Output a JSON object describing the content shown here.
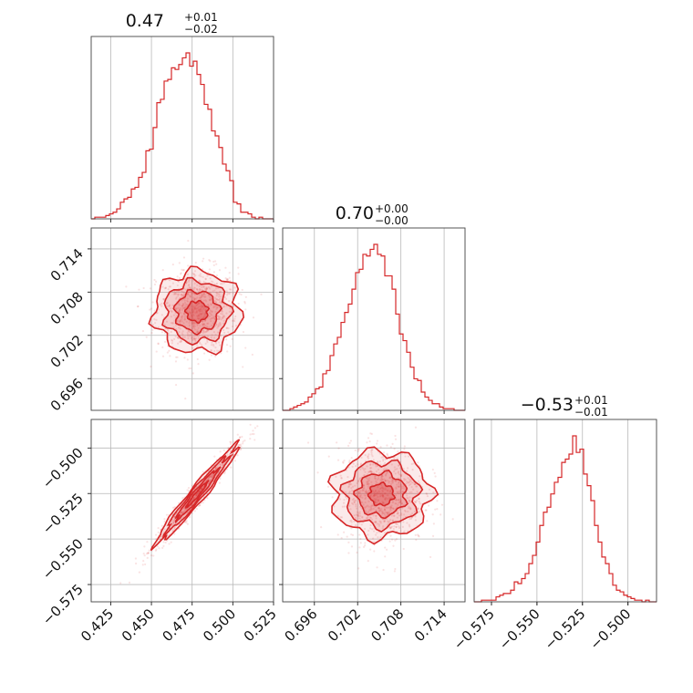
{
  "chart_data": {
    "type": "corner",
    "series_color": "#d62728",
    "grid": true,
    "parameters": [
      {
        "title_value": "0.47",
        "title_plus": "+0.01",
        "title_minus": "−0.02",
        "range": [
          0.413,
          0.525
        ],
        "ticks": [
          {
            "value": 0.425,
            "label": "0.425"
          },
          {
            "value": 0.45,
            "label": "0.450"
          },
          {
            "value": 0.475,
            "label": "0.475"
          },
          {
            "value": 0.5,
            "label": "0.500"
          },
          {
            "value": 0.525,
            "label": "0.525"
          }
        ],
        "histogram": [
          0.0,
          0.01,
          0.01,
          0.01,
          0.02,
          0.03,
          0.04,
          0.06,
          0.1,
          0.12,
          0.13,
          0.18,
          0.19,
          0.25,
          0.28,
          0.41,
          0.42,
          0.55,
          0.7,
          0.72,
          0.83,
          0.84,
          0.91,
          0.9,
          0.93,
          0.97,
          1.0,
          0.92,
          0.95,
          0.87,
          0.81,
          0.69,
          0.66,
          0.53,
          0.5,
          0.43,
          0.33,
          0.29,
          0.23,
          0.1,
          0.09,
          0.04,
          0.04,
          0.03,
          0.01,
          0.0,
          0.01,
          0.0,
          0.0,
          0.0
        ]
      },
      {
        "title_value": "0.70",
        "title_plus": "+0.00",
        "title_minus": "−0.00",
        "range": [
          0.6916,
          0.7169
        ],
        "ticks": [
          {
            "value": 0.696,
            "label": "0.696"
          },
          {
            "value": 0.702,
            "label": "0.702"
          },
          {
            "value": 0.708,
            "label": "0.708"
          },
          {
            "value": 0.714,
            "label": "0.714"
          }
        ],
        "histogram": [
          0.0,
          0.0,
          0.01,
          0.02,
          0.03,
          0.04,
          0.05,
          0.08,
          0.1,
          0.13,
          0.14,
          0.22,
          0.24,
          0.33,
          0.4,
          0.44,
          0.53,
          0.59,
          0.64,
          0.73,
          0.83,
          0.85,
          0.94,
          0.93,
          0.97,
          1.0,
          0.94,
          0.93,
          0.81,
          0.81,
          0.73,
          0.58,
          0.46,
          0.42,
          0.35,
          0.26,
          0.19,
          0.18,
          0.11,
          0.08,
          0.06,
          0.04,
          0.04,
          0.02,
          0.01,
          0.01,
          0.01,
          0.0,
          0.0,
          0.0
        ]
      },
      {
        "title_value": "−0.53",
        "title_plus": "+0.01",
        "title_minus": "−0.01",
        "range": [
          -0.5845,
          -0.4843
        ],
        "ticks": [
          {
            "value": -0.575,
            "label": "−0.575"
          },
          {
            "value": -0.55,
            "label": "−0.550"
          },
          {
            "value": -0.525,
            "label": "−0.525"
          },
          {
            "value": -0.5,
            "label": "−0.500"
          }
        ],
        "histogram": [
          0.0,
          0.0,
          0.01,
          0.01,
          0.01,
          0.01,
          0.03,
          0.04,
          0.05,
          0.05,
          0.07,
          0.12,
          0.11,
          0.14,
          0.17,
          0.23,
          0.28,
          0.36,
          0.46,
          0.54,
          0.57,
          0.65,
          0.72,
          0.75,
          0.84,
          0.86,
          0.89,
          1.0,
          0.9,
          0.92,
          0.77,
          0.7,
          0.61,
          0.46,
          0.36,
          0.27,
          0.23,
          0.17,
          0.1,
          0.07,
          0.06,
          0.04,
          0.03,
          0.02,
          0.01,
          0.01,
          0.0,
          0.01,
          0.0,
          0.0
        ]
      }
    ],
    "joint_distributions": [
      {
        "x_param": 0,
        "y_param": 1,
        "center": [
          0.478,
          0.7053
        ],
        "sd": [
          0.0125,
          0.003
        ],
        "correlation": 0.0
      },
      {
        "x_param": 0,
        "y_param": 2,
        "center": [
          0.478,
          -0.5255
        ],
        "sd": [
          0.0125,
          0.0135
        ],
        "correlation": 0.97
      },
      {
        "x_param": 1,
        "y_param": 2,
        "center": [
          0.7053,
          -0.5255
        ],
        "sd": [
          0.003,
          0.0135
        ],
        "correlation": 0.0
      }
    ]
  }
}
